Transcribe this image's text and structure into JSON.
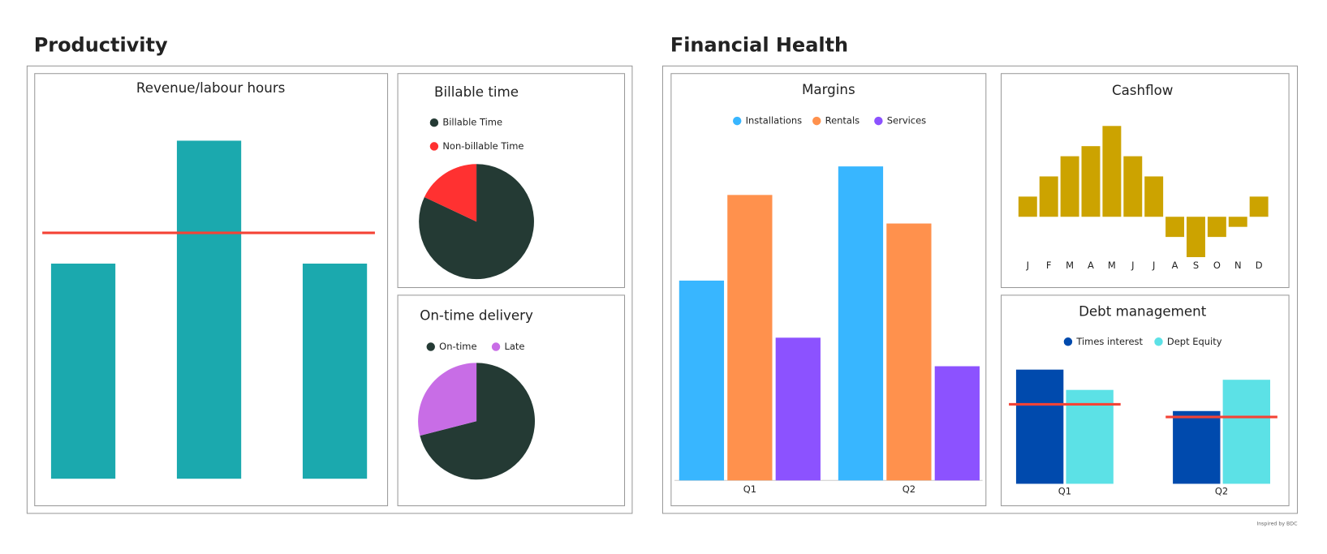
{
  "sections": [
    "Productivity",
    "Financial Health"
  ],
  "footer": "Inspired by BDC",
  "chart_data": [
    {
      "type": "bar",
      "title": "Revenue/labour hours",
      "categories": [
        null,
        null,
        null
      ],
      "values": [
        3.5,
        5.5,
        3.5
      ],
      "color": "#1ba9ae",
      "target": [
        4
      ],
      "target_color": "#f44336",
      "ylim": [
        0,
        6
      ]
    },
    {
      "type": "pie",
      "title": "Billable time",
      "categories": [
        "Billable Time",
        "Non-billable Time"
      ],
      "values": [
        82,
        18
      ],
      "colors": [
        "#243a34",
        "#ff3131"
      ]
    },
    {
      "type": "pie",
      "title": "On-time delivery",
      "categories": [
        "On-time",
        "Late"
      ],
      "values": [
        71,
        29
      ],
      "colors": [
        "#243a34",
        "#c86de6"
      ]
    },
    {
      "type": "bar",
      "title": "Margins",
      "categories": [
        "Q1",
        "Q2"
      ],
      "series": [
        {
          "name": "Installations",
          "color": "#38b6ff",
          "values": [
            3.5,
            5.5
          ]
        },
        {
          "name": "Rentals",
          "color": "#ff914d",
          "values": [
            5.0,
            4.5
          ]
        },
        {
          "name": "Services",
          "color": "#8c52ff",
          "values": [
            2.5,
            2.0
          ]
        }
      ],
      "ylim": [
        0,
        6
      ]
    },
    {
      "type": "bar",
      "title": "Cashflow",
      "categories": [
        "J",
        "F",
        "M",
        "A",
        "M",
        "J",
        "J",
        "A",
        "S",
        "O",
        "N",
        "D"
      ],
      "values": [
        1,
        2,
        3,
        3.5,
        4.5,
        3,
        2,
        -1,
        -2,
        -1,
        -0.5,
        1
      ],
      "color": "#cca300",
      "ylim": [
        -2,
        5
      ]
    },
    {
      "type": "bar",
      "title": "Debt management",
      "categories": [
        "Q1",
        "Q2"
      ],
      "series": [
        {
          "name": "Times interest",
          "color": "#004aad",
          "values": [
            1.35,
            0.86
          ]
        },
        {
          "name": "Dept Equity",
          "color": "#5ce1e6",
          "values": [
            1.11,
            1.23
          ]
        }
      ],
      "target": [
        0.94,
        0.79
      ],
      "target_color": "#f44336",
      "ylim": [
        0,
        1.5
      ]
    }
  ]
}
